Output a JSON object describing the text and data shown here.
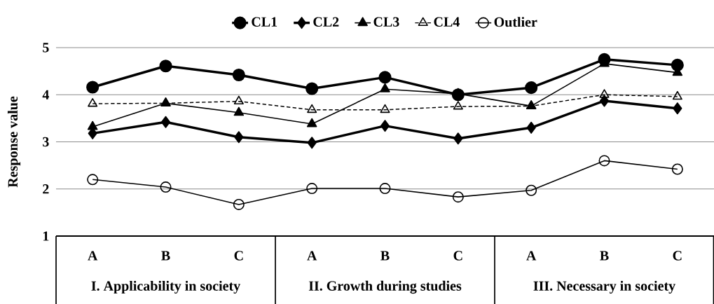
{
  "chart_data": {
    "type": "line",
    "categories": [
      "A",
      "B",
      "C",
      "A",
      "B",
      "C",
      "A",
      "B",
      "C"
    ],
    "ylabel": "Response value",
    "ylim": [
      1,
      5
    ],
    "yticks": [
      1,
      2,
      3,
      4,
      5
    ],
    "grid": "y",
    "legend": "top",
    "annotations": [
      "I.  Applicability in society",
      "II. Growth during studies",
      "III. Necessary in society"
    ],
    "series": [
      {
        "name": "CL1",
        "color": "#000000",
        "marker": "circle",
        "line_style": "solid",
        "values": [
          4.16,
          4.61,
          4.42,
          4.13,
          4.37,
          4.0,
          4.15,
          4.75,
          4.63
        ]
      },
      {
        "name": "CL2",
        "color": "#000000",
        "marker": "diamond",
        "line_style": "solid",
        "values": [
          3.18,
          3.42,
          3.1,
          2.98,
          3.34,
          3.07,
          3.3,
          3.87,
          3.71
        ]
      },
      {
        "name": "CL3",
        "color": "#000000",
        "marker": "triangle",
        "line_style": "solid",
        "values": [
          3.32,
          3.82,
          3.62,
          3.38,
          4.12,
          4.02,
          3.76,
          4.66,
          4.47
        ]
      },
      {
        "name": "CL4",
        "color": "#000000",
        "marker": "triangle",
        "line_style": "dashed",
        "values": [
          3.81,
          3.82,
          3.86,
          3.68,
          3.68,
          3.75,
          3.76,
          4.0,
          3.96
        ]
      },
      {
        "name": "Outlier",
        "color": "#000000",
        "marker": "circle",
        "line_style": "solid",
        "values": [
          2.2,
          2.04,
          1.67,
          2.01,
          2.01,
          1.83,
          1.97,
          2.6,
          2.42
        ]
      }
    ]
  }
}
